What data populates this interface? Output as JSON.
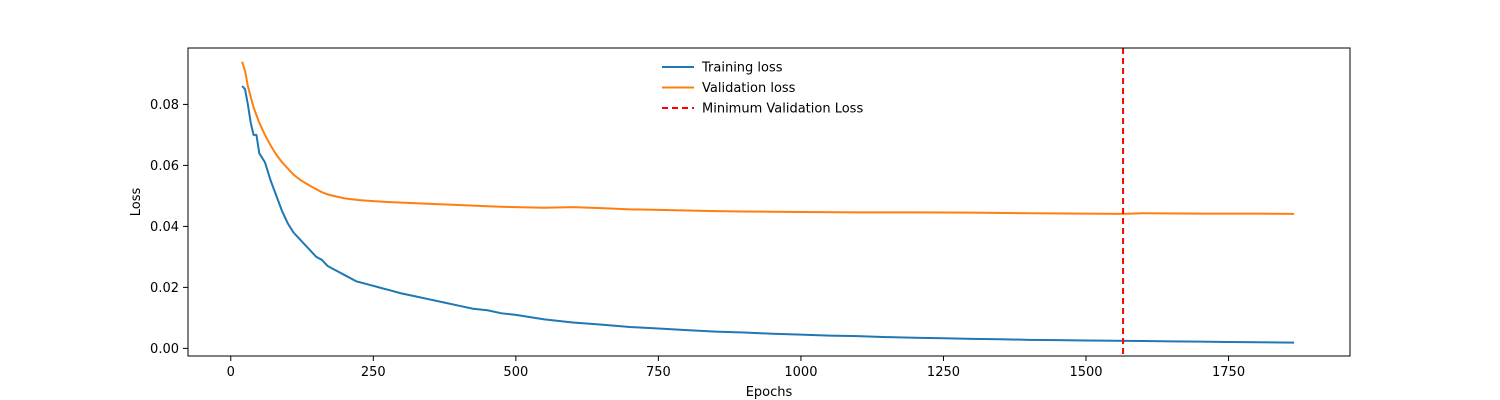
{
  "chart_data": {
    "type": "line",
    "title": "",
    "xlabel": "Epochs",
    "ylabel": "Loss",
    "xlim": [
      -75,
      1963
    ],
    "ylim": [
      -0.0025,
      0.0985
    ],
    "xticks": [
      0,
      250,
      500,
      750,
      1000,
      1250,
      1500,
      1750
    ],
    "xtick_labels": [
      "0",
      "250",
      "500",
      "750",
      "1000",
      "1250",
      "1500",
      "1750"
    ],
    "yticks": [
      0.0,
      0.02,
      0.04,
      0.06,
      0.08
    ],
    "ytick_labels": [
      "0.00",
      "0.02",
      "0.04",
      "0.06",
      "0.08"
    ],
    "grid": false,
    "legend_position": "top-center",
    "series": [
      {
        "name": "Training loss",
        "color": "#1f77b4",
        "style": "solid",
        "x": [
          20,
          25,
          30,
          35,
          40,
          45,
          50,
          60,
          70,
          80,
          90,
          100,
          110,
          120,
          130,
          140,
          150,
          160,
          170,
          180,
          190,
          200,
          220,
          240,
          260,
          280,
          300,
          325,
          350,
          375,
          400,
          425,
          450,
          475,
          500,
          550,
          600,
          650,
          700,
          750,
          800,
          850,
          900,
          950,
          1000,
          1050,
          1100,
          1150,
          1200,
          1250,
          1300,
          1350,
          1400,
          1450,
          1500,
          1550,
          1600,
          1650,
          1700,
          1750,
          1800,
          1865
        ],
        "y": [
          0.086,
          0.085,
          0.08,
          0.074,
          0.07,
          0.07,
          0.064,
          0.061,
          0.055,
          0.05,
          0.045,
          0.041,
          0.038,
          0.036,
          0.034,
          0.032,
          0.03,
          0.029,
          0.027,
          0.026,
          0.025,
          0.024,
          0.022,
          0.021,
          0.02,
          0.019,
          0.018,
          0.017,
          0.016,
          0.015,
          0.014,
          0.013,
          0.0125,
          0.0115,
          0.011,
          0.0095,
          0.0085,
          0.0078,
          0.007,
          0.0065,
          0.006,
          0.0055,
          0.0052,
          0.0048,
          0.0045,
          0.0042,
          0.004,
          0.0037,
          0.0035,
          0.0033,
          0.0031,
          0.003,
          0.0028,
          0.0027,
          0.0026,
          0.0025,
          0.0024,
          0.0023,
          0.0022,
          0.0021,
          0.002,
          0.0019
        ]
      },
      {
        "name": "Validation loss",
        "color": "#ff7f0e",
        "style": "solid",
        "x": [
          20,
          25,
          30,
          40,
          50,
          60,
          70,
          80,
          90,
          100,
          110,
          120,
          130,
          140,
          150,
          160,
          170,
          180,
          200,
          225,
          250,
          275,
          300,
          350,
          400,
          450,
          500,
          550,
          600,
          650,
          700,
          750,
          800,
          850,
          900,
          950,
          1000,
          1100,
          1200,
          1300,
          1400,
          1500,
          1565,
          1600,
          1700,
          1800,
          1865
        ],
        "y": [
          0.094,
          0.091,
          0.086,
          0.079,
          0.074,
          0.07,
          0.0665,
          0.0635,
          0.061,
          0.059,
          0.057,
          0.0555,
          0.0543,
          0.0532,
          0.0522,
          0.0512,
          0.0505,
          0.05,
          0.0492,
          0.0486,
          0.0483,
          0.048,
          0.0478,
          0.0474,
          0.047,
          0.0466,
          0.0463,
          0.0461,
          0.0463,
          0.046,
          0.0456,
          0.0454,
          0.0452,
          0.045,
          0.0449,
          0.0448,
          0.0447,
          0.0446,
          0.0446,
          0.0445,
          0.0443,
          0.0442,
          0.0441,
          0.0443,
          0.0442,
          0.0442,
          0.0441
        ]
      },
      {
        "name": "Minimum Validation Loss",
        "color": "#ff0000",
        "style": "dashed",
        "vline_x": 1565
      }
    ]
  }
}
